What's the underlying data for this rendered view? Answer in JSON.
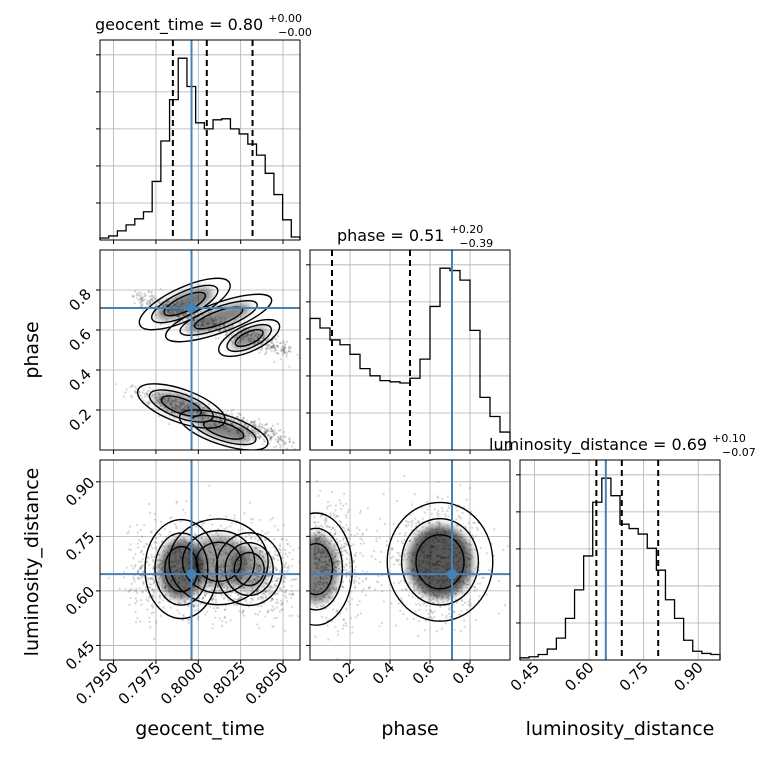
{
  "chart_data": {
    "type": "corner",
    "colors": {
      "truth": "#4682b4",
      "hist": "#000000",
      "grid": "#b0b0b0"
    },
    "truths": {
      "geocent_time": 0.7996,
      "phase": 0.71,
      "luminosity_distance": 0.646
    },
    "parameters": [
      {
        "name": "geocent_time",
        "xlabel": "geocent_time",
        "title_main": "geocent_time = 0.80",
        "title_plus": "+0.00",
        "title_minus": "−0.00",
        "range": [
          0.7942,
          0.806
        ],
        "ticks": [
          0.795,
          0.7975,
          0.8,
          0.8025,
          0.805
        ],
        "tick_labels": [
          "0.7950",
          "0.7975",
          "0.8000",
          "0.8025",
          "0.8050"
        ],
        "quantiles": [
          0.7985,
          0.8005,
          0.8032
        ],
        "hist": [
          2,
          4,
          9,
          15,
          21,
          28,
          58,
          98,
          139,
          180,
          152,
          116,
          110,
          119,
          120,
          110,
          105,
          95,
          84,
          66,
          45,
          20,
          3
        ]
      },
      {
        "name": "phase",
        "xlabel": "phase",
        "title_main": "phase = 0.51",
        "title_plus": "+0.20",
        "title_minus": "−0.39",
        "range": [
          0.0,
          1.0
        ],
        "ticks": [
          0.2,
          0.4,
          0.6,
          0.8
        ],
        "tick_labels": [
          "0.2",
          "0.4",
          "0.6",
          "0.8"
        ],
        "quantiles": [
          0.11,
          0.5,
          0.71
        ],
        "hist": [
          110,
          102,
          92,
          88,
          80,
          68,
          62,
          58,
          57,
          56,
          60,
          76,
          120,
          152,
          150,
          142,
          100,
          44,
          28,
          15
        ]
      },
      {
        "name": "luminosity_distance",
        "xlabel": "luminosity_distance",
        "title_main": "luminosity_distance = 0.69",
        "title_plus": "+0.10",
        "title_minus": "−0.07",
        "range": [
          0.41,
          0.96
        ],
        "ticks": [
          0.45,
          0.6,
          0.75,
          0.9
        ],
        "tick_labels": [
          "0.45",
          "0.60",
          "0.75",
          "0.90"
        ],
        "quantiles": [
          0.62,
          0.69,
          0.79
        ],
        "hist": [
          2,
          3,
          5,
          10,
          20,
          38,
          64,
          95,
          144,
          166,
          150,
          124,
          120,
          115,
          102,
          82,
          55,
          38,
          18,
          8,
          6,
          5
        ]
      }
    ],
    "grid": true
  }
}
